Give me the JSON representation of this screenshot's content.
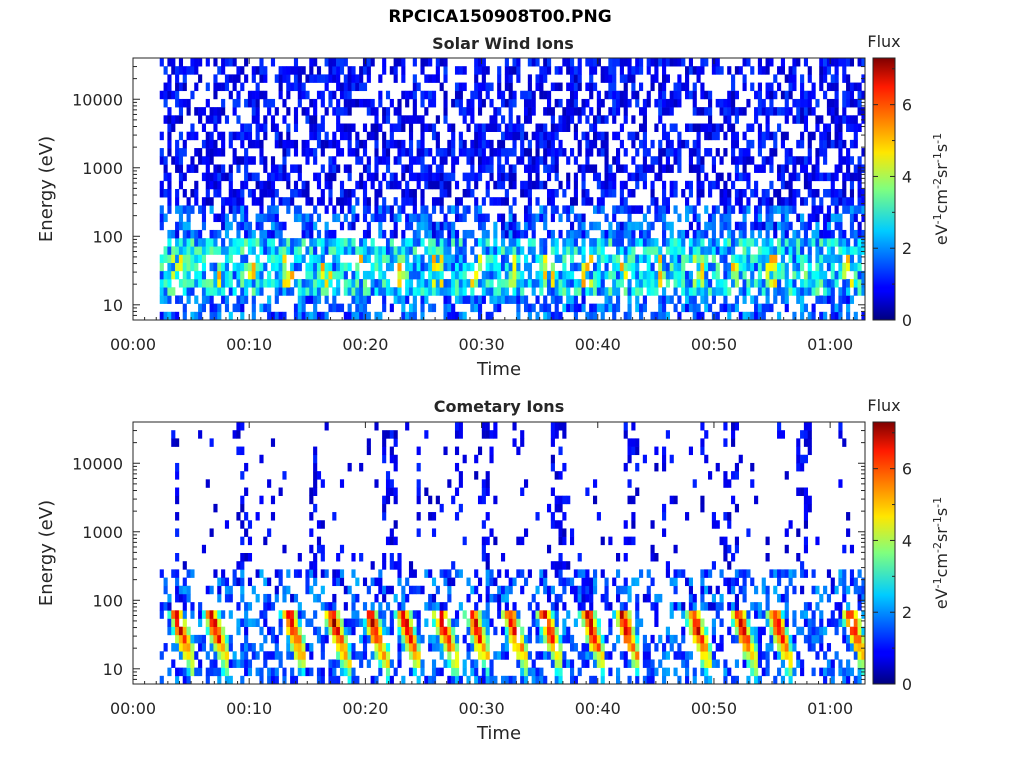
{
  "figure_title": "RPCICA150908T00.PNG",
  "chart_data": [
    {
      "type": "heatmap",
      "title": "Solar Wind Ions",
      "xlabel": "Time",
      "ylabel": "Energy (eV)",
      "x_ticks": [
        "00:00",
        "00:10",
        "00:20",
        "00:30",
        "00:40",
        "00:50",
        "01:00"
      ],
      "x_tick_minutes": [
        0,
        10,
        20,
        30,
        40,
        50,
        60
      ],
      "xlim_minutes": [
        0,
        63
      ],
      "y_scale": "log",
      "y_ticks": [
        "10",
        "100",
        "1000",
        "10000"
      ],
      "y_tick_values": [
        10,
        100,
        1000,
        10000
      ],
      "ylim": [
        6,
        40000
      ],
      "data_time_range_minutes": [
        2.3,
        62.8
      ],
      "colorbar": {
        "label": "Flux",
        "units_label": "eV-1cm-2sr-1s-1",
        "ticks": [
          "0",
          "2",
          "4",
          "6"
        ],
        "tick_values": [
          0,
          2,
          4,
          6
        ],
        "range": [
          0,
          7.3
        ],
        "colormap": "jet"
      },
      "features": [
        {
          "description": "sparse low-level flux across all energies",
          "energy_range": [
            6,
            40000
          ],
          "flux_level": [
            0.5,
            1.5
          ]
        },
        {
          "description": "enhanced band near 20-70 eV with peaks",
          "energy_range": [
            15,
            70
          ],
          "flux_level": [
            2,
            5.2
          ]
        }
      ]
    },
    {
      "type": "heatmap",
      "title": "Cometary Ions",
      "xlabel": "Time",
      "ylabel": "Energy (eV)",
      "x_ticks": [
        "00:00",
        "00:10",
        "00:20",
        "00:30",
        "00:40",
        "00:50",
        "01:00"
      ],
      "x_tick_minutes": [
        0,
        10,
        20,
        30,
        40,
        50,
        60
      ],
      "xlim_minutes": [
        0,
        63
      ],
      "y_scale": "log",
      "y_ticks": [
        "10",
        "100",
        "1000",
        "10000"
      ],
      "y_tick_values": [
        10,
        100,
        1000,
        10000
      ],
      "ylim": [
        6,
        40000
      ],
      "data_time_range_minutes": [
        2.3,
        62.8
      ],
      "colorbar": {
        "label": "Flux",
        "units_label": "eV-1cm-2sr-1s-1",
        "ticks": [
          "0",
          "2",
          "4",
          "6"
        ],
        "tick_values": [
          0,
          2,
          4,
          6
        ],
        "range": [
          0,
          7.3
        ],
        "colormap": "jet"
      },
      "features": [
        {
          "description": "recurring bursts peaking near 20-40 eV",
          "energy_range": [
            10,
            150
          ],
          "peak_flux": 7.2,
          "burst_times_minutes": [
            3.8,
            6.8,
            13.5,
            17.2,
            20.5,
            23.3,
            26.5,
            29.3,
            32.5,
            35.5,
            39.2,
            42.2,
            48.3,
            52.2,
            55.3,
            61.8
          ]
        },
        {
          "description": "sparse high-energy flux in vertical stripes",
          "energy_range": [
            300,
            10000
          ],
          "flux_level": [
            0.5,
            1.2
          ]
        }
      ]
    }
  ]
}
